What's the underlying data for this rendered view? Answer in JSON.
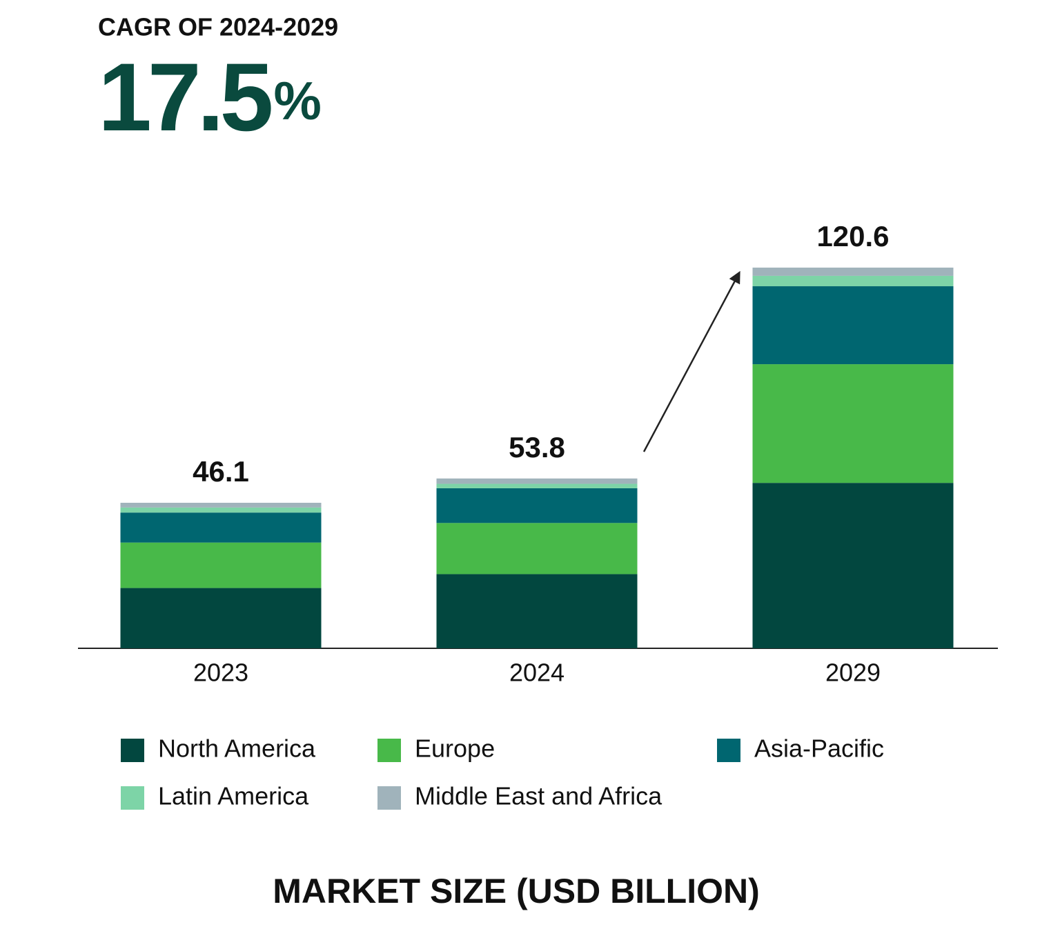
{
  "chart_data": {
    "type": "stacked_bar",
    "cagr_label": "CAGR OF 2024-2029",
    "cagr": 17.5,
    "cagr_unit": "%",
    "categories": [
      "2023",
      "2024",
      "2029"
    ],
    "series": [
      {
        "name": "North America",
        "color": "#02473f",
        "values": [
          19.1,
          23.5,
          52.4
        ]
      },
      {
        "name": "Europe",
        "color": "#48b949",
        "values": [
          14.4,
          16.2,
          37.6
        ]
      },
      {
        "name": "Asia-Pacific",
        "color": "#006670",
        "values": [
          9.5,
          11.0,
          24.7
        ]
      },
      {
        "name": "Latin America",
        "color": "#7dd4a7",
        "values": [
          1.6,
          1.4,
          3.3
        ]
      },
      {
        "name": "Middle East and Africa",
        "color": "#a0b3bb",
        "values": [
          1.5,
          1.7,
          2.6
        ]
      }
    ],
    "totals": [
      46.1,
      53.8,
      120.6
    ],
    "ylim": [
      0,
      130
    ],
    "xlabel": "MARKET SIZE (USD BILLION)"
  }
}
